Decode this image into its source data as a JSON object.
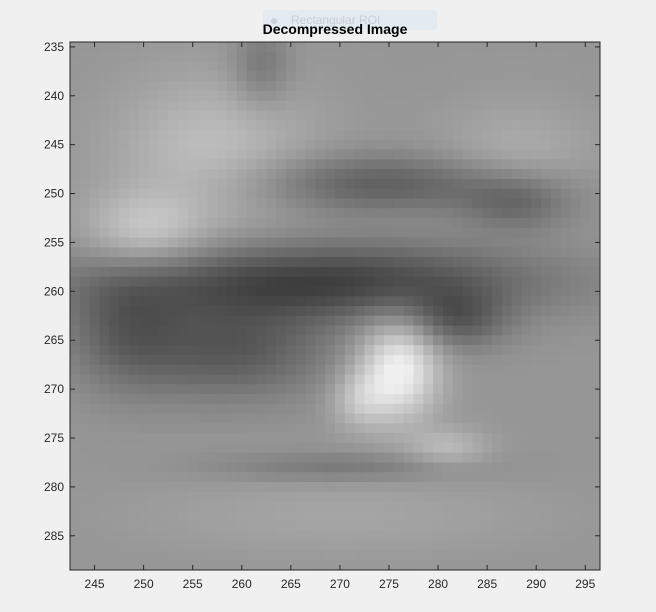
{
  "window": {
    "tooltip_label": "Rectangular ROI"
  },
  "axes": {
    "title": "Decompressed Image",
    "x_ticks": [
      "245",
      "250",
      "255",
      "260",
      "265",
      "270",
      "275",
      "280",
      "285",
      "290",
      "295"
    ],
    "y_ticks": [
      "235",
      "240",
      "245",
      "250",
      "255",
      "260",
      "265",
      "270",
      "275",
      "280",
      "285"
    ]
  },
  "chart_data": {
    "type": "heatmap",
    "title": "Decompressed Image",
    "colormap": "gray",
    "xlim": [
      242.5,
      296.5
    ],
    "ylim": [
      234.5,
      288.5
    ],
    "y_reversed": true,
    "x_ticks": [
      245,
      250,
      255,
      260,
      265,
      270,
      275,
      280,
      285,
      290,
      295
    ],
    "y_ticks": [
      235,
      240,
      245,
      250,
      255,
      260,
      265,
      270,
      275,
      280,
      285
    ],
    "image_features": [
      {
        "name": "eyebrow",
        "x_range": [
          259,
          292
        ],
        "y_range": [
          242,
          254
        ],
        "intensity": "dark gray"
      },
      {
        "name": "upper eyelid / eye",
        "x_range": [
          243,
          294
        ],
        "y_range": [
          254,
          272
        ],
        "intensity": "dark"
      },
      {
        "name": "eye highlight",
        "x_range": [
          270,
          283
        ],
        "y_range": [
          262,
          276
        ],
        "intensity": "light"
      },
      {
        "name": "lower lid",
        "x_range": [
          255,
          283
        ],
        "y_range": [
          276,
          280
        ],
        "intensity": "mid gray"
      }
    ]
  }
}
